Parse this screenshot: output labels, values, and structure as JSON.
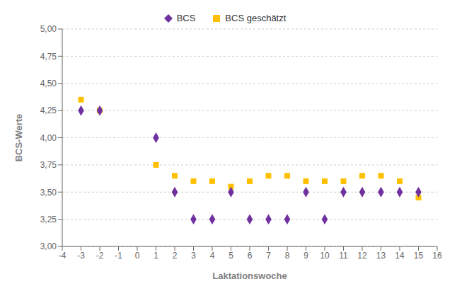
{
  "chart_data": {
    "type": "scatter",
    "xlabel": "Laktationswoche",
    "ylabel": "BCS-Werte",
    "series": [
      {
        "name": "BCS",
        "color": "#7030A0",
        "marker": "diamond",
        "x": [
          -3,
          -2,
          1,
          2,
          3,
          4,
          5,
          6,
          7,
          8,
          9,
          10,
          11,
          12,
          13,
          14,
          15
        ],
        "values": [
          4.25,
          4.25,
          4.0,
          3.5,
          3.25,
          3.25,
          3.5,
          3.25,
          3.25,
          3.25,
          3.5,
          3.25,
          3.5,
          3.5,
          3.5,
          3.5,
          3.5
        ]
      },
      {
        "name": "BCS geschätzt",
        "color": "#FFC000",
        "marker": "square",
        "x": [
          -3,
          -2,
          1,
          2,
          3,
          4,
          5,
          6,
          7,
          8,
          9,
          10,
          11,
          12,
          13,
          14,
          15
        ],
        "values": [
          4.35,
          4.25,
          3.75,
          3.65,
          3.6,
          3.6,
          3.55,
          3.6,
          3.65,
          3.65,
          3.6,
          3.6,
          3.6,
          3.65,
          3.65,
          3.6,
          3.45
        ]
      }
    ],
    "xlim": [
      -4,
      16
    ],
    "ylim": [
      3.0,
      5.0
    ],
    "xticks": [
      -4,
      -3,
      -2,
      -1,
      0,
      1,
      2,
      3,
      4,
      5,
      6,
      7,
      8,
      9,
      10,
      11,
      12,
      13,
      14,
      15,
      16
    ],
    "yticks": [
      {
        "value": 3.0,
        "label": "3,00"
      },
      {
        "value": 3.25,
        "label": "3,25"
      },
      {
        "value": 3.5,
        "label": "3,50"
      },
      {
        "value": 3.75,
        "label": "3,75"
      },
      {
        "value": 4.0,
        "label": "4,00"
      },
      {
        "value": 4.25,
        "label": "4,25"
      },
      {
        "value": 4.5,
        "label": "4,50"
      },
      {
        "value": 4.75,
        "label": "4,75"
      },
      {
        "value": 5.0,
        "label": "5,00"
      }
    ],
    "grid": "y",
    "legend": "top"
  }
}
